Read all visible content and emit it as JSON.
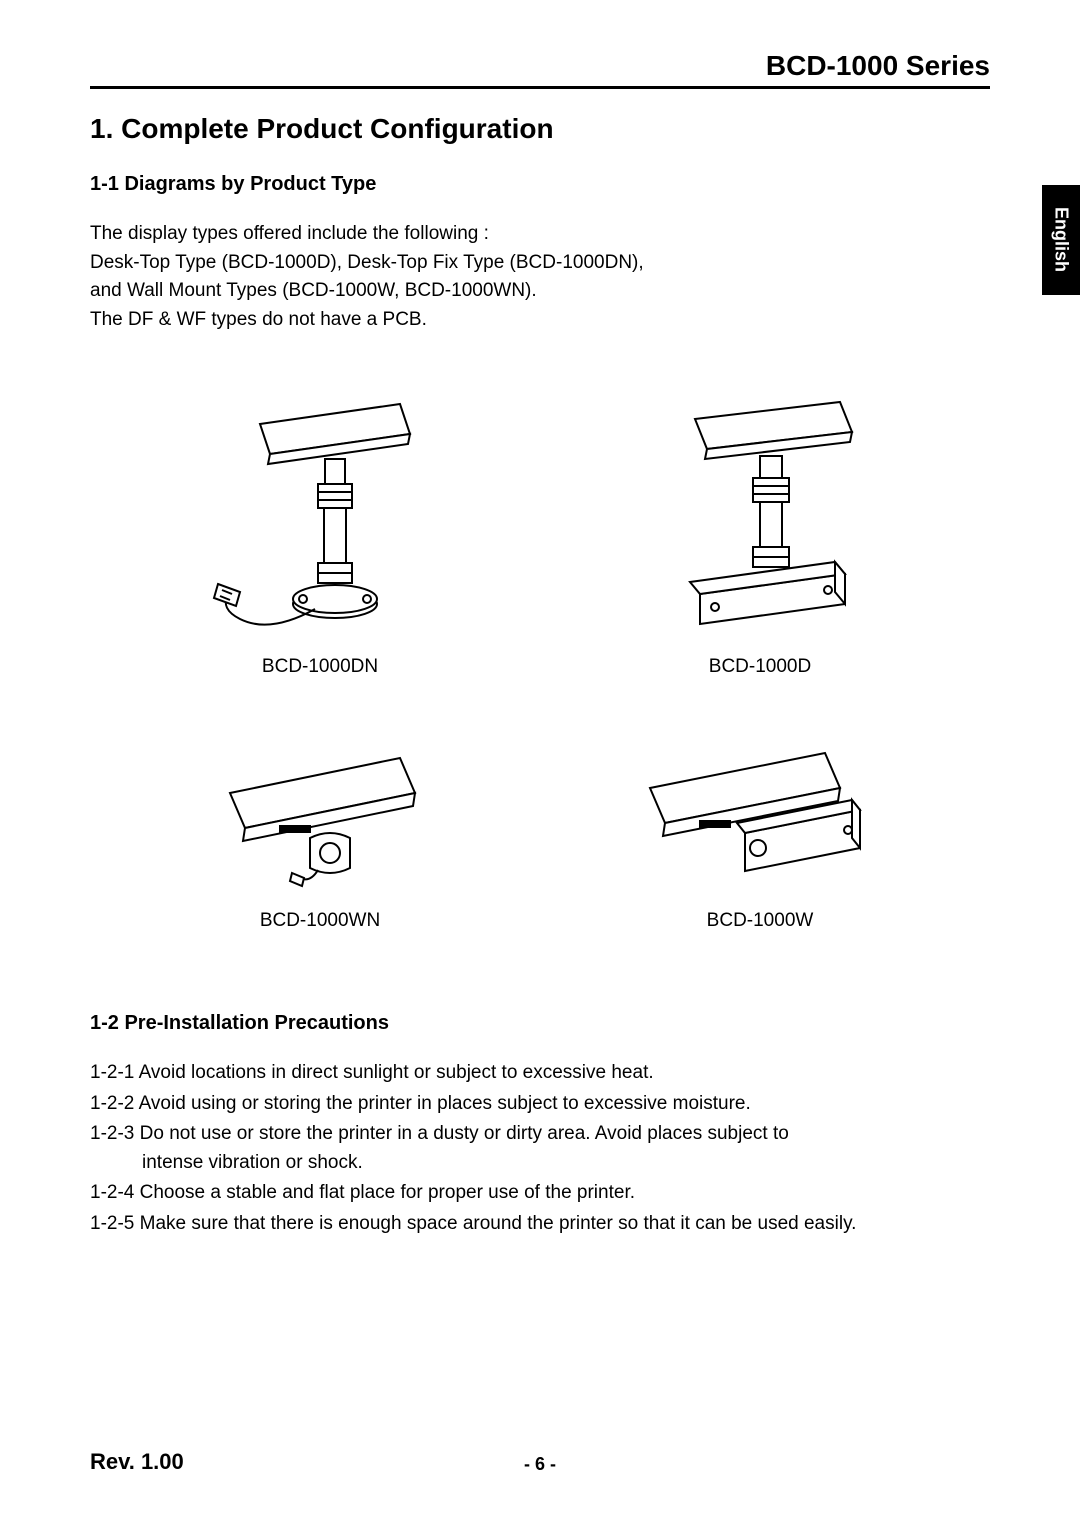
{
  "series_title": "BCD-1000 Series",
  "lang_tab": "English",
  "section_title": "1. Complete Product Configuration",
  "subsection_1_title": "1-1 Diagrams by Product Type",
  "intro_text": "The display types offered include the following :\nDesk-Top Type (BCD-1000D), Desk-Top Fix Type (BCD-1000DN),\nand Wall Mount Types (BCD-1000W, BCD-1000WN).\nThe DF & WF types do not have a PCB.",
  "diagrams": {
    "tl_label": "BCD-1000DN",
    "tr_label": "BCD-1000D",
    "bl_label": "BCD-1000WN",
    "br_label": "BCD-1000W"
  },
  "subsection_2_title": "1-2 Pre-Installation Precautions",
  "precautions": [
    {
      "num": "1-2-1",
      "text": "Avoid locations in direct sunlight or subject to excessive heat."
    },
    {
      "num": "1-2-2",
      "text": "Avoid using or storing the printer in places subject to excessive moisture."
    },
    {
      "num": "1-2-3",
      "text": "Do not use or store the printer in a dusty or dirty area. Avoid places subject to",
      "text2": "intense vibration or shock."
    },
    {
      "num": "1-2-4",
      "text": "Choose a stable and flat place for proper use of the printer."
    },
    {
      "num": "1-2-5",
      "text": "Make sure that there is enough space around the printer so that it can be used easily."
    }
  ],
  "footer_rev": "Rev. 1.00",
  "footer_page": "- 6 -",
  "colors": {
    "text": "#000000",
    "bg": "#ffffff",
    "tab_bg": "#000000",
    "tab_text": "#ffffff"
  }
}
